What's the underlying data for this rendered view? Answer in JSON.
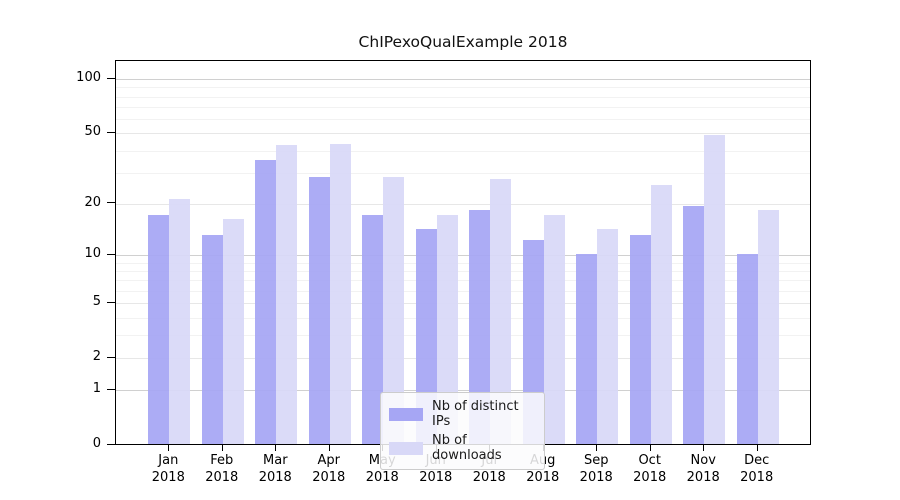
{
  "chart_data": {
    "type": "bar",
    "title": "ChIPexoQualExample 2018",
    "categories": [
      "Jan",
      "Feb",
      "Mar",
      "Apr",
      "May",
      "Jun",
      "Jul",
      "Aug",
      "Sep",
      "Oct",
      "Nov",
      "Dec"
    ],
    "year_label": "2018",
    "series": [
      {
        "name": "Nb of distinct IPs",
        "color": "#a6a6f4",
        "values": [
          17,
          13,
          35,
          28,
          17,
          14,
          18,
          12,
          10,
          13,
          19,
          10
        ]
      },
      {
        "name": "Nb of downloads",
        "color": "#d8d8f7",
        "values": [
          21,
          16,
          42,
          43,
          28,
          17,
          27,
          17,
          14,
          25,
          48,
          18
        ]
      }
    ],
    "yscale": "log1p",
    "yticks": [
      0,
      1,
      2,
      5,
      10,
      20,
      50,
      100
    ],
    "emphasized_yticks": [
      1,
      10,
      100
    ],
    "minor_gridlines": [
      3,
      4,
      6,
      7,
      8,
      9,
      30,
      40,
      60,
      70,
      80,
      90
    ],
    "ylim": [
      0,
      125
    ],
    "grid": true,
    "legend_position": "bottom-center",
    "colors": {
      "grid_major": "#e7e7e7",
      "grid_emphasized": "#d0d0d0",
      "grid_minor": "#f2f2f2",
      "axis": "#000000"
    }
  }
}
